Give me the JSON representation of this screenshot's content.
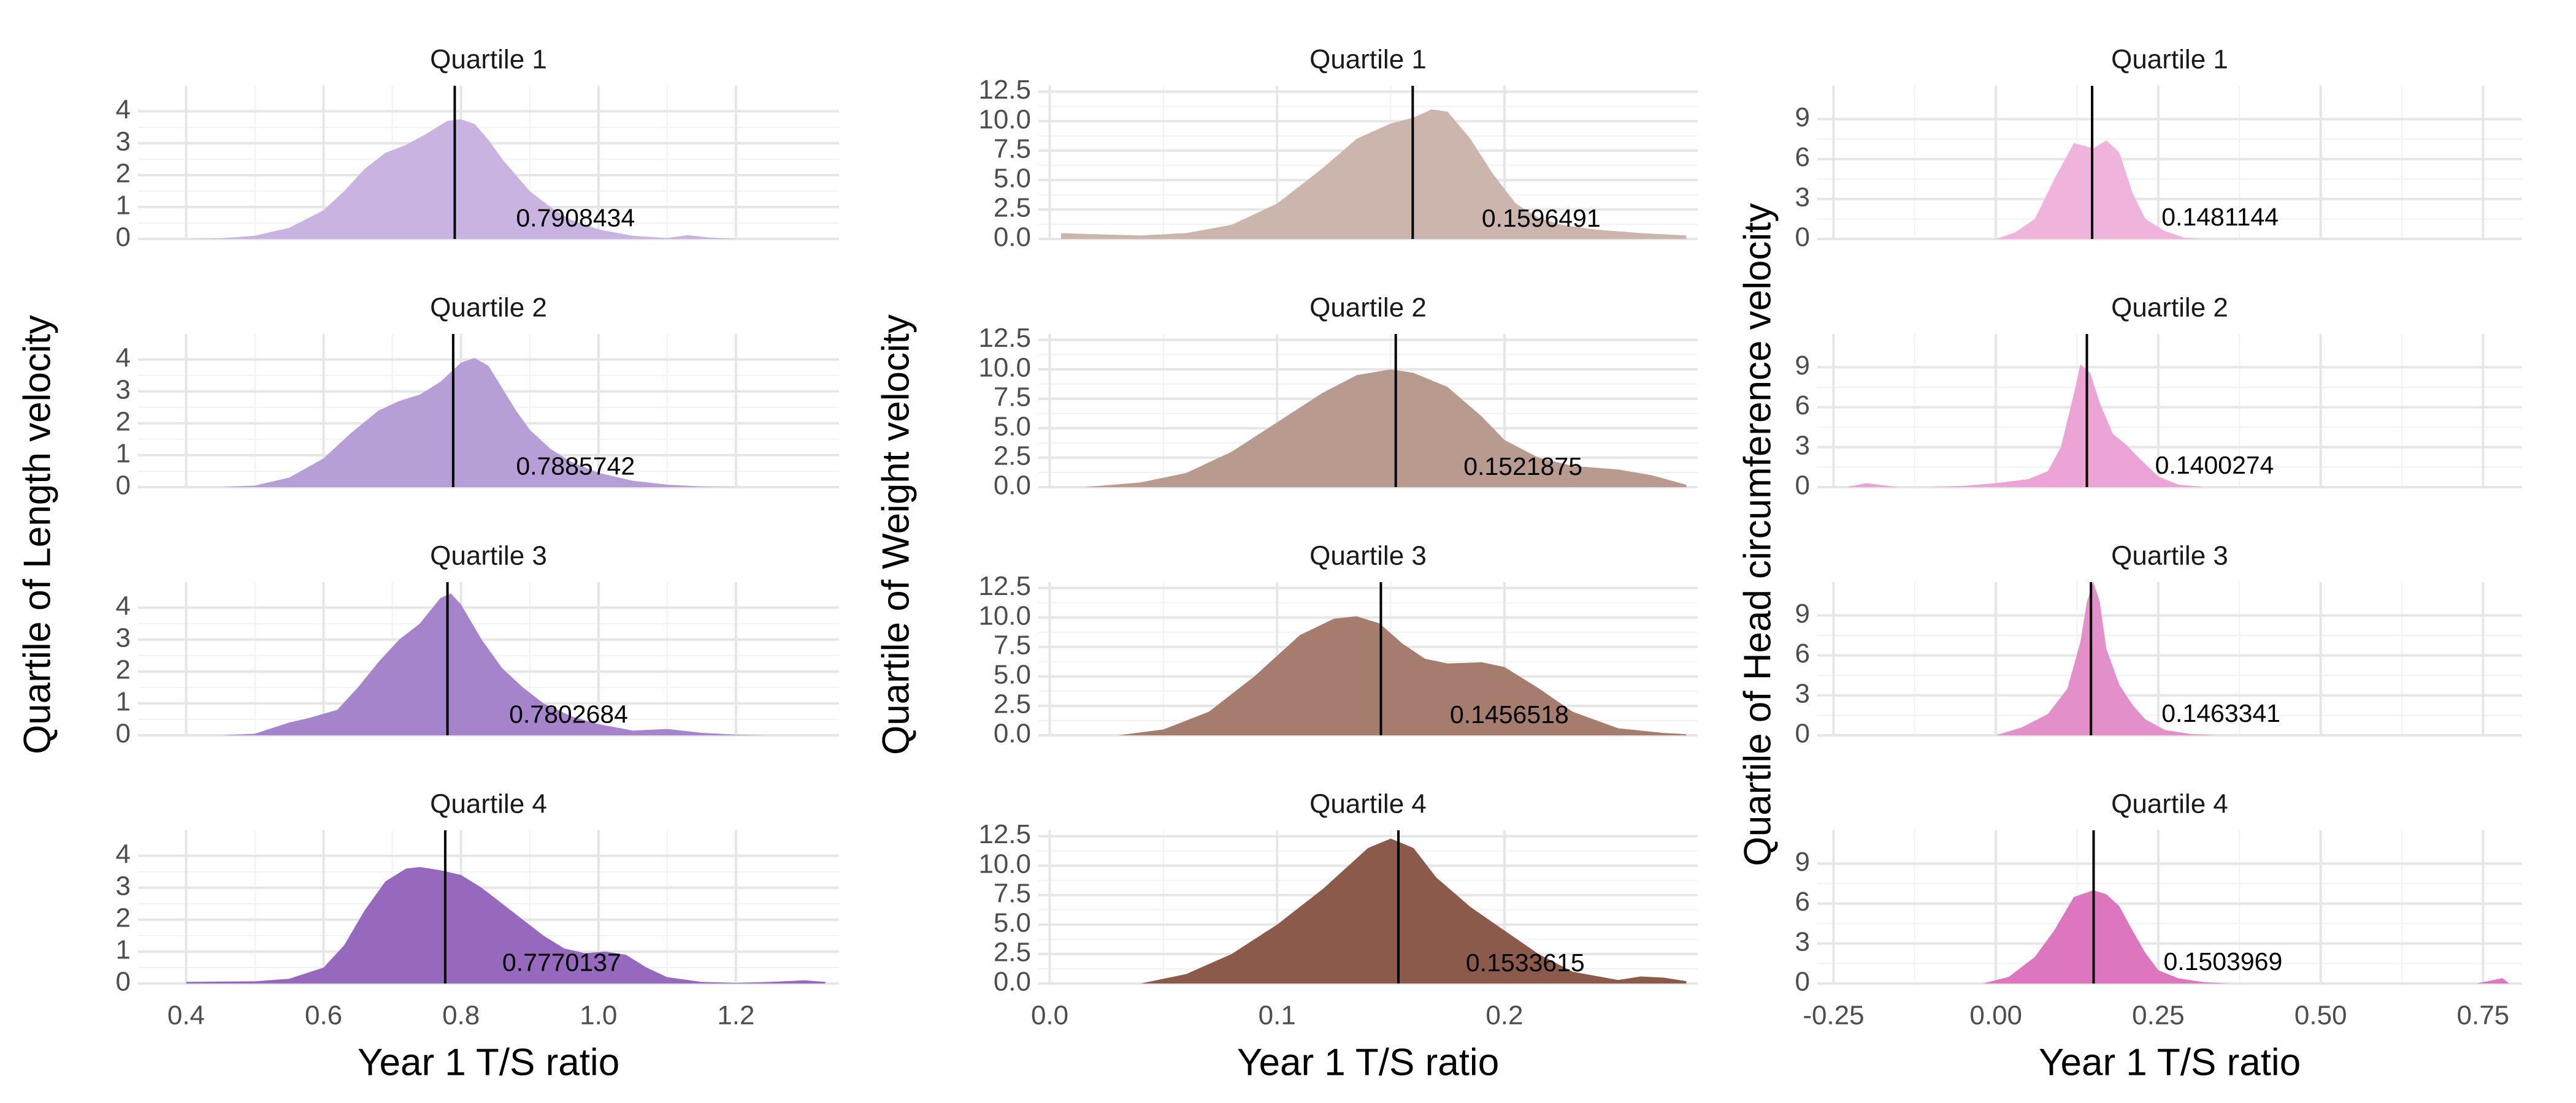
{
  "chart_data": [
    {
      "type": "area",
      "chart_kind": "faceted density plot",
      "title": "",
      "xlabel": "Year 1 T/S ratio",
      "ylabel": "Quartile of Length velocity",
      "xlim": [
        0.33,
        1.35
      ],
      "x_ticks": [
        0.4,
        0.6,
        0.8,
        1.0,
        1.2
      ],
      "x_tick_labels": [
        "0.4",
        "0.6",
        "0.8",
        "1.0",
        "1.2"
      ],
      "ylim": [
        0,
        4.8
      ],
      "y_ticks": [
        0,
        1,
        2,
        3,
        4
      ],
      "y_tick_labels": [
        "0",
        "1",
        "2",
        "3",
        "4"
      ],
      "grid": true,
      "legend": "none",
      "panels": [
        {
          "title": "Quartile 1",
          "color": "#c9b3e0",
          "vline": 0.7908434,
          "label": "0.7908434",
          "label_pos": [
            0.88,
            0.6
          ],
          "x": [
            0.4,
            0.45,
            0.5,
            0.55,
            0.6,
            0.63,
            0.66,
            0.69,
            0.72,
            0.75,
            0.78,
            0.8,
            0.82,
            0.84,
            0.86,
            0.88,
            0.9,
            0.93,
            0.96,
            1.0,
            1.05,
            1.1,
            1.13,
            1.16,
            1.2,
            1.25
          ],
          "y": [
            0.0,
            0.02,
            0.1,
            0.35,
            0.9,
            1.5,
            2.2,
            2.7,
            2.95,
            3.3,
            3.7,
            3.75,
            3.6,
            3.1,
            2.5,
            2.0,
            1.5,
            1.0,
            0.6,
            0.3,
            0.1,
            0.03,
            0.12,
            0.05,
            0.0,
            0.0
          ]
        },
        {
          "title": "Quartile 2",
          "color": "#b69fd6",
          "vline": 0.7885742,
          "label": "0.7885742",
          "label_pos": [
            0.88,
            0.6
          ],
          "x": [
            0.45,
            0.5,
            0.55,
            0.6,
            0.64,
            0.68,
            0.71,
            0.74,
            0.77,
            0.8,
            0.82,
            0.84,
            0.86,
            0.88,
            0.9,
            0.93,
            0.96,
            1.0,
            1.05,
            1.1,
            1.15,
            1.2
          ],
          "y": [
            0.0,
            0.05,
            0.3,
            0.9,
            1.7,
            2.4,
            2.7,
            2.9,
            3.3,
            3.9,
            4.05,
            3.8,
            3.1,
            2.4,
            1.8,
            1.2,
            0.8,
            0.45,
            0.2,
            0.08,
            0.02,
            0.0
          ]
        },
        {
          "title": "Quartile 3",
          "color": "#a684cc",
          "vline": 0.7802684,
          "label": "0.7802684",
          "label_pos": [
            0.87,
            0.6
          ],
          "x": [
            0.45,
            0.5,
            0.55,
            0.58,
            0.62,
            0.65,
            0.68,
            0.71,
            0.74,
            0.77,
            0.785,
            0.8,
            0.83,
            0.86,
            0.89,
            0.92,
            0.96,
            1.0,
            1.05,
            1.1,
            1.15,
            1.2,
            1.25
          ],
          "y": [
            0.0,
            0.05,
            0.4,
            0.55,
            0.8,
            1.5,
            2.3,
            3.0,
            3.5,
            4.3,
            4.45,
            4.1,
            3.0,
            2.1,
            1.5,
            1.0,
            0.6,
            0.35,
            0.15,
            0.2,
            0.08,
            0.02,
            0.0
          ]
        },
        {
          "title": "Quartile 4",
          "color": "#9669be",
          "vline": 0.7770137,
          "label": "0.7770137",
          "label_pos": [
            0.86,
            0.6
          ],
          "x": [
            0.4,
            0.5,
            0.55,
            0.6,
            0.63,
            0.66,
            0.69,
            0.72,
            0.74,
            0.77,
            0.8,
            0.83,
            0.86,
            0.89,
            0.92,
            0.95,
            0.98,
            1.01,
            1.04,
            1.07,
            1.1,
            1.15,
            1.2,
            1.25,
            1.3,
            1.33
          ],
          "y": [
            0.05,
            0.07,
            0.15,
            0.5,
            1.2,
            2.3,
            3.2,
            3.6,
            3.65,
            3.55,
            3.4,
            3.0,
            2.5,
            2.0,
            1.5,
            1.1,
            0.95,
            1.0,
            0.9,
            0.5,
            0.2,
            0.05,
            0.02,
            0.05,
            0.1,
            0.05
          ]
        }
      ]
    },
    {
      "type": "area",
      "chart_kind": "faceted density plot",
      "title": "",
      "xlabel": "Year 1 T/S ratio",
      "ylabel": "Quartile of Weight velocity",
      "xlim": [
        -0.005,
        0.285
      ],
      "x_ticks": [
        0.0,
        0.1,
        0.2
      ],
      "x_tick_labels": [
        "0.0",
        "0.1",
        "0.2"
      ],
      "ylim": [
        0,
        13
      ],
      "y_ticks": [
        0,
        2.5,
        5,
        7.5,
        10,
        12.5
      ],
      "y_tick_labels": [
        "0.0",
        "2.5",
        "5.0",
        "7.5",
        "10.0",
        "12.5"
      ],
      "grid": true,
      "legend": "none",
      "panels": [
        {
          "title": "Quartile 1",
          "color": "#ccb5ac",
          "vline": 0.1596491,
          "label": "0.1596491",
          "label_pos": [
            0.19,
            1.6
          ],
          "x": [
            0.005,
            0.02,
            0.04,
            0.06,
            0.08,
            0.1,
            0.12,
            0.135,
            0.15,
            0.16,
            0.168,
            0.175,
            0.185,
            0.195,
            0.205,
            0.215,
            0.225,
            0.24,
            0.26,
            0.28
          ],
          "y": [
            0.5,
            0.4,
            0.3,
            0.5,
            1.2,
            3.0,
            6.0,
            8.5,
            9.8,
            10.3,
            11.0,
            10.8,
            8.5,
            5.5,
            3.0,
            1.8,
            1.2,
            0.8,
            0.5,
            0.3
          ]
        },
        {
          "title": "Quartile 2",
          "color": "#b89a8f",
          "vline": 0.1521875,
          "label": "0.1521875",
          "label_pos": [
            0.182,
            1.6
          ],
          "x": [
            0.015,
            0.04,
            0.06,
            0.08,
            0.1,
            0.12,
            0.135,
            0.15,
            0.16,
            0.175,
            0.19,
            0.2,
            0.215,
            0.23,
            0.25,
            0.265,
            0.28
          ],
          "y": [
            0.0,
            0.4,
            1.2,
            3.0,
            5.5,
            8.0,
            9.5,
            10.0,
            9.7,
            8.5,
            6.0,
            4.0,
            2.5,
            1.8,
            1.5,
            1.0,
            0.2
          ]
        },
        {
          "title": "Quartile 3",
          "color": "#a57c6e",
          "vline": 0.1456518,
          "label": "0.1456518",
          "label_pos": [
            0.176,
            1.6
          ],
          "x": [
            0.03,
            0.05,
            0.07,
            0.09,
            0.11,
            0.125,
            0.135,
            0.145,
            0.155,
            0.165,
            0.175,
            0.19,
            0.2,
            0.215,
            0.23,
            0.25,
            0.27,
            0.28
          ],
          "y": [
            0.0,
            0.5,
            2.0,
            5.0,
            8.5,
            9.9,
            10.1,
            9.5,
            7.8,
            6.5,
            6.1,
            6.2,
            5.8,
            4.0,
            2.0,
            0.6,
            0.2,
            0.1
          ]
        },
        {
          "title": "Quartile 4",
          "color": "#8c5a4a",
          "vline": 0.1533615,
          "label": "0.1533615",
          "label_pos": [
            0.183,
            1.6
          ],
          "x": [
            0.04,
            0.06,
            0.08,
            0.1,
            0.12,
            0.14,
            0.15,
            0.16,
            0.17,
            0.185,
            0.2,
            0.215,
            0.23,
            0.25,
            0.26,
            0.27,
            0.28
          ],
          "y": [
            0.0,
            0.8,
            2.5,
            5.0,
            8.0,
            11.5,
            12.3,
            11.5,
            9.0,
            6.5,
            4.5,
            2.5,
            1.0,
            0.3,
            0.6,
            0.5,
            0.2
          ]
        }
      ]
    },
    {
      "type": "area",
      "chart_kind": "faceted density plot",
      "title": "",
      "xlabel": "Year 1 T/S ratio",
      "ylabel": "Quartile of Head circumference velocity",
      "xlim": [
        -0.275,
        0.81
      ],
      "x_ticks": [
        -0.25,
        0.0,
        0.25,
        0.5,
        0.75
      ],
      "x_tick_labels": [
        "-0.25",
        "0.00",
        "0.25",
        "0.50",
        "0.75"
      ],
      "ylim": [
        0,
        11.5
      ],
      "y_ticks": [
        0,
        3,
        6,
        9
      ],
      "y_tick_labels": [
        "0",
        "3",
        "6",
        "9"
      ],
      "grid": true,
      "legend": "none",
      "panels": [
        {
          "title": "Quartile 1",
          "color": "#f0b3dc",
          "vline": 0.1481144,
          "label": "0.1481144",
          "label_pos": [
            0.255,
            1.5
          ],
          "x": [
            0.0,
            0.03,
            0.06,
            0.09,
            0.12,
            0.15,
            0.17,
            0.19,
            0.21,
            0.23,
            0.26,
            0.29,
            0.32
          ],
          "y": [
            0.0,
            0.5,
            1.5,
            4.5,
            7.2,
            6.8,
            7.4,
            6.5,
            3.5,
            1.5,
            0.6,
            0.1,
            0.0
          ]
        },
        {
          "title": "Quartile 2",
          "color": "#eba4d5",
          "vline": 0.1400274,
          "label": "0.1400274",
          "label_pos": [
            0.245,
            1.5
          ],
          "x": [
            -0.23,
            -0.2,
            -0.15,
            -0.1,
            -0.05,
            0.0,
            0.05,
            0.08,
            0.1,
            0.12,
            0.13,
            0.145,
            0.16,
            0.18,
            0.2,
            0.22,
            0.25,
            0.28,
            0.32
          ],
          "y": [
            0.0,
            0.3,
            0.0,
            0.0,
            0.1,
            0.3,
            0.6,
            1.2,
            3.0,
            7.0,
            9.2,
            8.6,
            6.3,
            4.0,
            3.2,
            2.2,
            0.8,
            0.2,
            0.0
          ]
        },
        {
          "title": "Quartile 3",
          "color": "#e38fc9",
          "vline": 0.1463341,
          "label": "0.1463341",
          "label_pos": [
            0.255,
            1.5
          ],
          "x": [
            0.0,
            0.04,
            0.08,
            0.11,
            0.13,
            0.14,
            0.15,
            0.16,
            0.17,
            0.19,
            0.21,
            0.23,
            0.26,
            0.3,
            0.34
          ],
          "y": [
            0.0,
            0.6,
            1.6,
            3.5,
            7.0,
            10.0,
            11.5,
            10.0,
            6.5,
            3.8,
            2.3,
            1.2,
            0.4,
            0.1,
            0.0
          ]
        },
        {
          "title": "Quartile 4",
          "color": "#dd76bf",
          "vline": 0.1503969,
          "label": "0.1503969",
          "label_pos": [
            0.258,
            1.5
          ],
          "x": [
            -0.02,
            0.02,
            0.06,
            0.09,
            0.12,
            0.15,
            0.17,
            0.19,
            0.21,
            0.23,
            0.25,
            0.28,
            0.32,
            0.36,
            0.74,
            0.76,
            0.78,
            0.79
          ],
          "y": [
            0.0,
            0.5,
            2.0,
            4.0,
            6.5,
            7.0,
            6.7,
            5.8,
            4.0,
            2.3,
            1.0,
            0.4,
            0.1,
            0.0,
            0.0,
            0.2,
            0.4,
            0.0
          ]
        }
      ]
    }
  ]
}
